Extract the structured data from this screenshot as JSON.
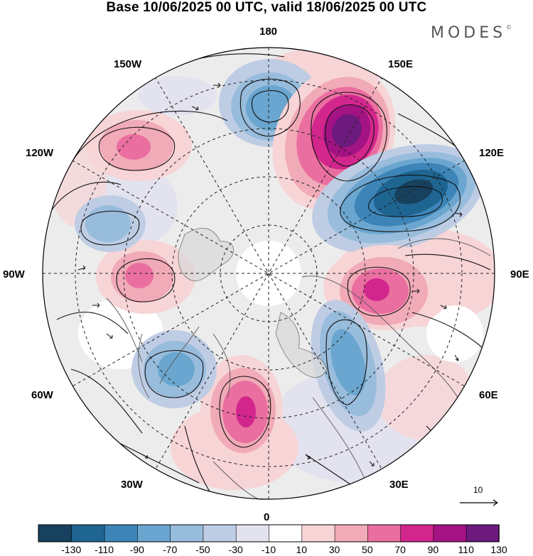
{
  "title": "Base 10/06/2025 00 UTC, valid 18/06/2025 00 UTC",
  "brand": "MODES",
  "brand_mark": "©",
  "longitude_labels": {
    "lon_180": "180",
    "lon_150E": "150E",
    "lon_120E": "120E",
    "lon_90E": "90E",
    "lon_60E": "60E",
    "lon_30E": "30E",
    "lon_0": "0",
    "lon_30W": "30W",
    "lon_60W": "60W",
    "lon_90W": "90W",
    "lon_120W": "120W",
    "lon_150W": "150W"
  },
  "reference_vector_label": "10",
  "colorbar": {
    "ticks": [
      "-130",
      "-110",
      "-90",
      "-70",
      "-50",
      "-30",
      "-10",
      "10",
      "30",
      "50",
      "70",
      "90",
      "110",
      "130"
    ],
    "colors": [
      "#17415e",
      "#1e6592",
      "#3d85b8",
      "#6aa6cf",
      "#98bcdc",
      "#bfcde4",
      "#e3e3ef",
      "#ffffff",
      "#f7d4d6",
      "#f1aab7",
      "#ea6fa0",
      "#d2268d",
      "#a31384",
      "#6d1a7f"
    ]
  },
  "anomaly_centers": [
    {
      "kind": "negative",
      "lon": "175E",
      "value": -70
    },
    {
      "kind": "positive",
      "lon": "155E",
      "value": 120
    },
    {
      "kind": "negative",
      "lon": "120E",
      "value": -110
    },
    {
      "kind": "positive",
      "lon": "95E",
      "value": 80
    },
    {
      "kind": "negative",
      "lon": "55E",
      "value": -50
    },
    {
      "kind": "positive",
      "lon": "20W",
      "value": 70
    },
    {
      "kind": "negative",
      "lon": "50W",
      "value": -50
    },
    {
      "kind": "positive",
      "lon": "95W",
      "value": 50
    },
    {
      "kind": "negative",
      "lon": "115W",
      "value": -40
    },
    {
      "kind": "positive",
      "lon": "135W",
      "value": 40
    }
  ]
}
